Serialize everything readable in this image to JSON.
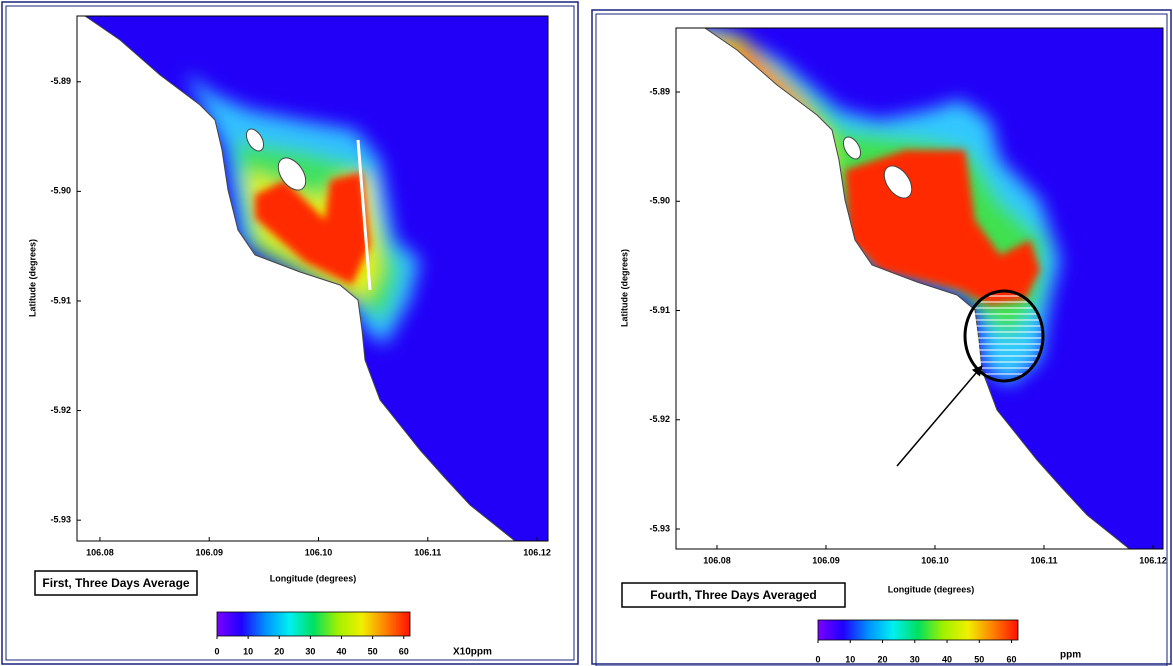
{
  "chart_data": [
    {
      "type": "map",
      "caption": "First, Three Days Average",
      "xlabel": "Longitude (degrees)",
      "ylabel": "Latitude (degrees)",
      "xlim": [
        106.0779,
        106.121
      ],
      "xticks": [
        106.08,
        106.09,
        {
          "value": 106.1,
          "label": "106.10"
        },
        106.11,
        106.12
      ],
      "ylim": [
        -5.884,
        -5.9319
      ],
      "yticks": [
        -5.89,
        {
          "value": -5.9,
          "label": "-5.90"
        },
        -5.91,
        -5.92,
        -5.93
      ],
      "colorbar": {
        "lim": [
          0,
          62
        ],
        "ticks": [
          0,
          10,
          20,
          30,
          40,
          50,
          60
        ],
        "unit": "X10ppm",
        "colors": [
          "#7a00ff",
          "#2000ff",
          "#0090ff",
          "#00f0f0",
          "#00e060",
          "#a0f000",
          "#f0f000",
          "#ff8000",
          "#ff1000"
        ]
      }
    },
    {
      "type": "map",
      "caption": "Fourth, Three Days Averaged",
      "xlabel": "Longitude (degrees)",
      "ylabel": "Latitude (degrees)",
      "xlim": [
        106.07624,
        106.12092
      ],
      "xticks": [
        106.08,
        106.09,
        {
          "value": 106.1,
          "label": "106.10"
        },
        106.11,
        106.12
      ],
      "ylim": [
        -5.88414,
        -5.93183
      ],
      "yticks": [
        -5.89,
        {
          "value": -5.9,
          "label": "-5.90"
        },
        -5.91,
        -5.92,
        -5.93
      ],
      "colorbar": {
        "lim": [
          0,
          62
        ],
        "ticks": [
          0,
          10,
          20,
          30,
          40,
          50,
          60
        ],
        "unit": "ppm",
        "colors": [
          "#7a00ff",
          "#2000ff",
          "#0090ff",
          "#00f0f0",
          "#00e060",
          "#a0f000",
          "#f0f000",
          "#ff8000",
          "#ff1000"
        ]
      }
    }
  ]
}
